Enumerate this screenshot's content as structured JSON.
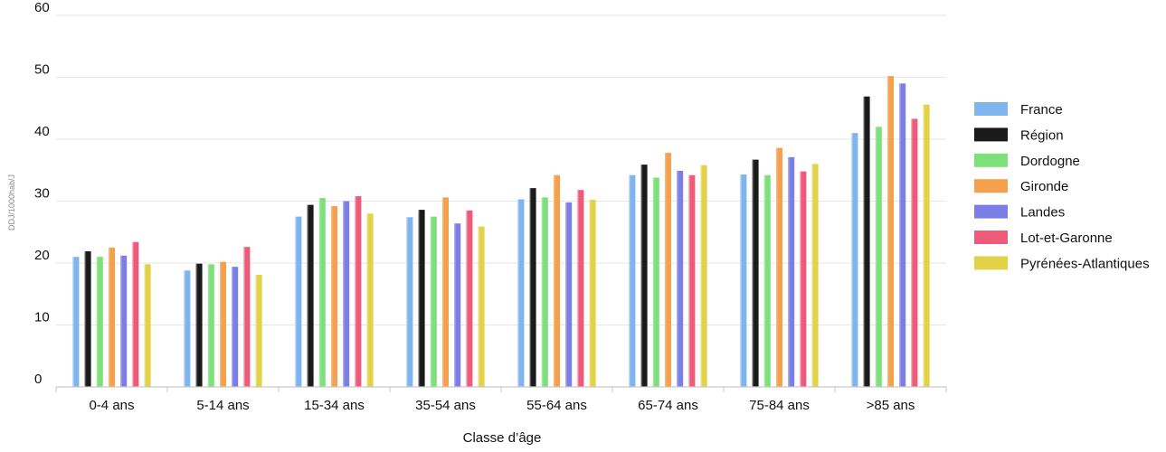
{
  "chart_data": {
    "type": "bar",
    "xlabel": "Classe d’âge",
    "ylabel": "DDJ/1000hab/J",
    "ylim": [
      0,
      60
    ],
    "yticks": [
      0,
      10,
      20,
      30,
      40,
      50,
      60
    ],
    "grid": true,
    "legend_position": "right",
    "categories": [
      "0-4 ans",
      "5-14 ans",
      "15-34 ans",
      "35-54 ans",
      "55-64 ans",
      "65-74 ans",
      "75-84 ans",
      ">85 ans"
    ],
    "series": [
      {
        "name": "France",
        "color": "#7fb5ef",
        "values": [
          21.0,
          18.8,
          27.5,
          27.4,
          30.3,
          34.2,
          34.3,
          41.0
        ]
      },
      {
        "name": "Région",
        "color": "#1a1a1a",
        "values": [
          21.9,
          19.9,
          29.4,
          28.6,
          32.1,
          35.9,
          36.7,
          46.9
        ]
      },
      {
        "name": "Dordogne",
        "color": "#7ee07a",
        "values": [
          21.0,
          19.8,
          30.5,
          27.5,
          30.6,
          33.8,
          34.2,
          42.0
        ]
      },
      {
        "name": "Gironde",
        "color": "#f5a04d",
        "values": [
          22.5,
          20.2,
          29.2,
          30.6,
          34.2,
          37.8,
          38.6,
          50.2
        ]
      },
      {
        "name": "Landes",
        "color": "#7c7ee6",
        "values": [
          21.2,
          19.4,
          30.0,
          26.4,
          29.8,
          34.9,
          37.1,
          49.0
        ]
      },
      {
        "name": "Lot-et-Garonne",
        "color": "#ee5a7a",
        "values": [
          23.4,
          22.6,
          30.8,
          28.5,
          31.8,
          34.2,
          34.8,
          43.3
        ]
      },
      {
        "name": "Pyrénées-Atlantiques",
        "color": "#e2d247",
        "values": [
          19.8,
          18.1,
          28.0,
          25.9,
          30.2,
          35.8,
          36.0,
          45.6
        ]
      }
    ]
  }
}
